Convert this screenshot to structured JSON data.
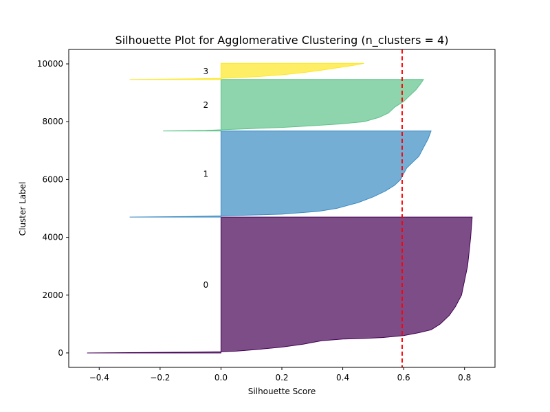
{
  "chart_data": {
    "type": "area",
    "title": "Silhouette Plot for Agglomerative Clustering (n_clusters = 4)",
    "xlabel": "Silhouette Score",
    "ylabel": "Cluster Label",
    "xlim": [
      -0.5,
      0.9
    ],
    "ylim": [
      -500,
      10500
    ],
    "xticks": [
      {
        "value": -0.4,
        "label": "−0.4"
      },
      {
        "value": -0.2,
        "label": "−0.2"
      },
      {
        "value": 0.0,
        "label": "0.0"
      },
      {
        "value": 0.2,
        "label": "0.2"
      },
      {
        "value": 0.4,
        "label": "0.4"
      },
      {
        "value": 0.6,
        "label": "0.6"
      },
      {
        "value": 0.8,
        "label": "0.8"
      }
    ],
    "yticks": [
      {
        "value": 0,
        "label": "0"
      },
      {
        "value": 2000,
        "label": "2000"
      },
      {
        "value": 4000,
        "label": "4000"
      },
      {
        "value": 6000,
        "label": "6000"
      },
      {
        "value": 8000,
        "label": "8000"
      },
      {
        "value": 10000,
        "label": "10000"
      }
    ],
    "grid": false,
    "average_score": 0.595,
    "average_line_color": "#ff0000",
    "series": [
      {
        "name": "0",
        "y_start": 0,
        "y_end": 4700,
        "color": "#440154",
        "label_at": {
          "x": -0.05,
          "y": 2350
        },
        "profile": [
          [
            0,
            -0.44
          ],
          [
            10,
            -0.3
          ],
          [
            25,
            -0.1
          ],
          [
            40,
            0.0
          ],
          [
            60,
            0.05
          ],
          [
            120,
            0.12
          ],
          [
            200,
            0.2
          ],
          [
            300,
            0.27
          ],
          [
            420,
            0.33
          ],
          [
            480,
            0.4
          ],
          [
            500,
            0.47
          ],
          [
            530,
            0.53
          ],
          [
            600,
            0.6
          ],
          [
            700,
            0.65
          ],
          [
            800,
            0.69
          ],
          [
            1000,
            0.72
          ],
          [
            1300,
            0.75
          ],
          [
            1600,
            0.77
          ],
          [
            2000,
            0.79
          ],
          [
            2500,
            0.8
          ],
          [
            3000,
            0.81
          ],
          [
            3500,
            0.815
          ],
          [
            4000,
            0.82
          ],
          [
            4700,
            0.825
          ]
        ]
      },
      {
        "name": "1",
        "y_start": 4700,
        "y_end": 7680,
        "color": "#3b8bc2",
        "label_at": {
          "x": -0.05,
          "y": 6190
        },
        "profile": [
          [
            4700,
            -0.3
          ],
          [
            4720,
            -0.1
          ],
          [
            4740,
            0.0
          ],
          [
            4800,
            0.2
          ],
          [
            4900,
            0.32
          ],
          [
            5000,
            0.38
          ],
          [
            5200,
            0.45
          ],
          [
            5400,
            0.5
          ],
          [
            5600,
            0.54
          ],
          [
            5800,
            0.57
          ],
          [
            6000,
            0.59
          ],
          [
            6200,
            0.6
          ],
          [
            6400,
            0.61
          ],
          [
            6600,
            0.63
          ],
          [
            6800,
            0.65
          ],
          [
            7000,
            0.66
          ],
          [
            7200,
            0.67
          ],
          [
            7400,
            0.68
          ],
          [
            7680,
            0.69
          ]
        ]
      },
      {
        "name": "2",
        "y_start": 7680,
        "y_end": 9460,
        "color": "#5ec28a",
        "label_at": {
          "x": -0.05,
          "y": 8570
        },
        "profile": [
          [
            7680,
            -0.19
          ],
          [
            7700,
            -0.05
          ],
          [
            7720,
            0.0
          ],
          [
            7760,
            0.1
          ],
          [
            7800,
            0.2
          ],
          [
            7860,
            0.3
          ],
          [
            7930,
            0.4
          ],
          [
            8000,
            0.47
          ],
          [
            8150,
            0.52
          ],
          [
            8300,
            0.55
          ],
          [
            8500,
            0.57
          ],
          [
            8700,
            0.6
          ],
          [
            8900,
            0.62
          ],
          [
            9100,
            0.64
          ],
          [
            9300,
            0.655
          ],
          [
            9460,
            0.665
          ]
        ]
      },
      {
        "name": "3",
        "y_start": 9460,
        "y_end": 10020,
        "color": "#fde725",
        "label_at": {
          "x": -0.05,
          "y": 9740
        },
        "profile": [
          [
            9460,
            -0.3
          ],
          [
            9480,
            -0.1
          ],
          [
            9500,
            0.0
          ],
          [
            9560,
            0.12
          ],
          [
            9620,
            0.2
          ],
          [
            9700,
            0.27
          ],
          [
            9780,
            0.33
          ],
          [
            9860,
            0.38
          ],
          [
            9940,
            0.43
          ],
          [
            10020,
            0.47
          ]
        ]
      }
    ]
  }
}
